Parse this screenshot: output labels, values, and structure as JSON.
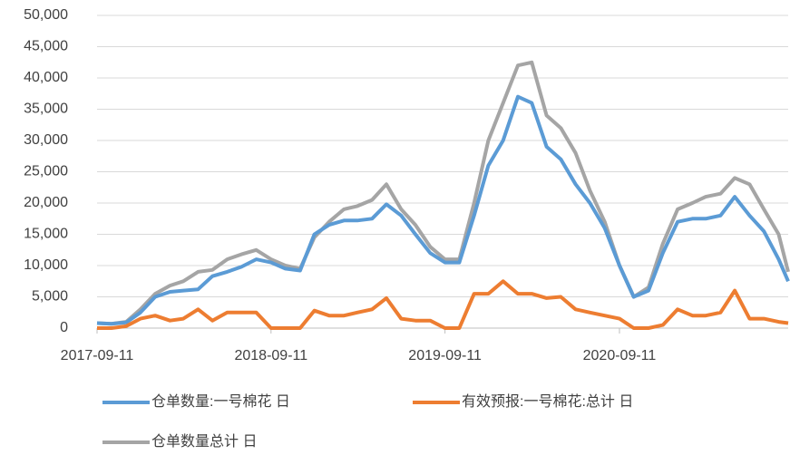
{
  "chart_data": {
    "type": "line",
    "x": [
      "2017-09-11",
      "2017-10-11",
      "2017-11-11",
      "2017-12-11",
      "2018-01-11",
      "2018-02-11",
      "2018-03-11",
      "2018-04-11",
      "2018-05-11",
      "2018-06-11",
      "2018-07-11",
      "2018-08-11",
      "2018-09-11",
      "2018-10-11",
      "2018-11-11",
      "2018-12-11",
      "2019-01-11",
      "2019-02-11",
      "2019-03-11",
      "2019-04-11",
      "2019-05-11",
      "2019-06-11",
      "2019-07-11",
      "2019-08-11",
      "2019-09-11",
      "2019-10-11",
      "2019-11-11",
      "2019-12-11",
      "2020-01-11",
      "2020-02-11",
      "2020-03-11",
      "2020-04-11",
      "2020-05-11",
      "2020-06-11",
      "2020-07-11",
      "2020-08-11",
      "2020-09-11",
      "2020-10-11",
      "2020-11-11",
      "2020-12-11",
      "2021-01-11",
      "2021-02-11",
      "2021-03-11",
      "2021-04-11",
      "2021-05-11",
      "2021-06-11",
      "2021-07-11",
      "2021-08-11",
      "2021-08-31"
    ],
    "series": [
      {
        "name": "仓单数量:一号棉花 日",
        "color": "#5b9bd5",
        "values": [
          800,
          700,
          900,
          2500,
          5000,
          5800,
          6000,
          6200,
          8300,
          9000,
          9800,
          11000,
          10500,
          9500,
          9200,
          15000,
          16500,
          17200,
          17200,
          17500,
          19800,
          18000,
          15000,
          12000,
          10500,
          10500,
          18000,
          26000,
          30000,
          37000,
          36000,
          29000,
          27000,
          23000,
          20000,
          16000,
          10000,
          5000,
          6000,
          12000,
          17000,
          17500,
          17500,
          18000,
          21000,
          18000,
          15500,
          11000,
          7500
        ]
      },
      {
        "name": "有效预报:一号棉花:总计 日",
        "color": "#ed7d31",
        "values": [
          0,
          0,
          300,
          1500,
          2000,
          1200,
          1500,
          3000,
          1200,
          2500,
          2500,
          2500,
          0,
          0,
          0,
          2800,
          2000,
          2000,
          2500,
          3000,
          4800,
          1500,
          1200,
          1200,
          0,
          0,
          5500,
          5500,
          7500,
          5500,
          5500,
          4800,
          5000,
          3000,
          2500,
          2000,
          1500,
          0,
          0,
          500,
          3000,
          2000,
          2000,
          2500,
          6000,
          1500,
          1500,
          1000,
          800
        ]
      },
      {
        "name": "仓单数量总计 日",
        "color": "#a5a5a5",
        "values": [
          800,
          700,
          1000,
          3000,
          5500,
          6800,
          7500,
          9000,
          9300,
          11000,
          11800,
          12500,
          11000,
          10000,
          9500,
          14500,
          17000,
          19000,
          19500,
          20500,
          23000,
          19000,
          16500,
          13000,
          11000,
          11000,
          20000,
          30000,
          36000,
          42000,
          42500,
          34000,
          32000,
          28000,
          22000,
          17000,
          10000,
          5000,
          6500,
          13500,
          19000,
          20000,
          21000,
          21500,
          24000,
          23000,
          19000,
          15000,
          9000
        ]
      }
    ],
    "xlim": [
      "2017-09-11",
      "2021-08-31"
    ],
    "xticks": [
      "2017-09-11",
      "2018-09-11",
      "2019-09-11",
      "2020-09-11"
    ],
    "ylim": [
      0,
      50000
    ],
    "yticks": [
      0,
      {
        "value": 5000,
        "label": "5,000"
      },
      {
        "value": 10000,
        "label": "10,000"
      },
      {
        "value": 15000,
        "label": "15,000"
      },
      {
        "value": 20000,
        "label": "20,000"
      },
      {
        "value": 25000,
        "label": "25,000"
      },
      {
        "value": 30000,
        "label": "30,000"
      },
      {
        "value": 35000,
        "label": "35,000"
      },
      {
        "value": 40000,
        "label": "40,000"
      },
      {
        "value": 45000,
        "label": "45,000"
      },
      {
        "value": 50000,
        "label": "50,000"
      }
    ],
    "grid": true
  }
}
